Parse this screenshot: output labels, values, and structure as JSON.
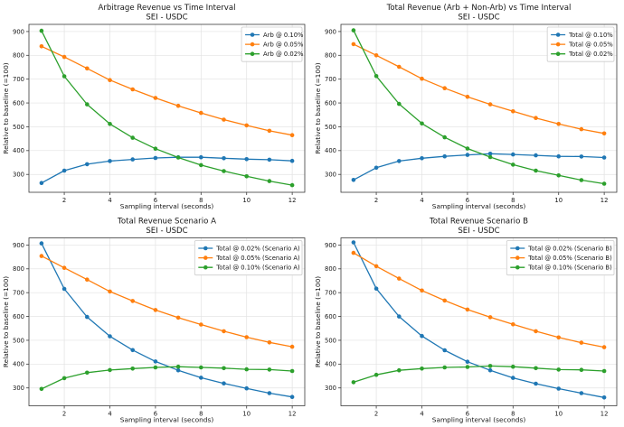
{
  "figure": {
    "background": "#ffffff",
    "text_color": "#161616",
    "grid_color": "#e2e2e2",
    "spine_color": "#3a3a3a",
    "legend_border": "#cccccc"
  },
  "palette": {
    "blue": "#1f77b4",
    "orange": "#ff7f0e",
    "green": "#2ca02c"
  },
  "chart_data": [
    {
      "id": "arbitrage-revenue",
      "type": "line",
      "title": "Arbitrage Revenue vs Time Interval",
      "subtitle": "SEI - USDC",
      "xlabel": "Sampling interval (seconds)",
      "ylabel": "Relative to baseline (=100)",
      "x": [
        1,
        2,
        3,
        4,
        5,
        6,
        7,
        8,
        9,
        10,
        11,
        12
      ],
      "xticks": [
        2,
        4,
        6,
        8,
        10,
        12
      ],
      "yticks": [
        300,
        400,
        500,
        600,
        700,
        800,
        900
      ],
      "xlim": [
        0.45,
        12.55
      ],
      "ylim": [
        225,
        930
      ],
      "grid": true,
      "legend_position": "upper right",
      "series": [
        {
          "name": "Arb @ 0.10%",
          "color": "#1f77b4",
          "values": [
            264,
            316,
            343,
            356,
            363,
            369,
            372,
            372,
            368,
            364,
            362,
            357
          ]
        },
        {
          "name": "Arb @ 0.05%",
          "color": "#ff7f0e",
          "values": [
            838,
            793,
            745,
            696,
            657,
            621,
            588,
            558,
            530,
            506,
            483,
            465
          ]
        },
        {
          "name": "Arb @ 0.02%",
          "color": "#2ca02c",
          "values": [
            903,
            712,
            594,
            512,
            454,
            408,
            371,
            339,
            314,
            292,
            272,
            255
          ]
        }
      ]
    },
    {
      "id": "total-revenue",
      "type": "line",
      "title": "Total Revenue (Arb + Non-Arb) vs Time Interval",
      "subtitle": "SEI - USDC",
      "xlabel": "Sampling interval (seconds)",
      "ylabel": "Relative to baseline (=100)",
      "x": [
        1,
        2,
        3,
        4,
        5,
        6,
        7,
        8,
        9,
        10,
        11,
        12
      ],
      "xticks": [
        2,
        4,
        6,
        8,
        10,
        12
      ],
      "yticks": [
        300,
        400,
        500,
        600,
        700,
        800,
        900
      ],
      "xlim": [
        0.45,
        12.55
      ],
      "ylim": [
        225,
        930
      ],
      "grid": true,
      "legend_position": "upper right",
      "series": [
        {
          "name": "Total @ 0.10%",
          "color": "#1f77b4",
          "values": [
            277,
            328,
            356,
            368,
            376,
            382,
            387,
            384,
            380,
            376,
            375,
            371
          ]
        },
        {
          "name": "Total @ 0.05%",
          "color": "#ff7f0e",
          "values": [
            847,
            800,
            752,
            702,
            662,
            626,
            594,
            565,
            537,
            512,
            490,
            472
          ]
        },
        {
          "name": "Total @ 0.02%",
          "color": "#2ca02c",
          "values": [
            905,
            713,
            596,
            514,
            456,
            409,
            373,
            341,
            316,
            296,
            276,
            261
          ]
        }
      ]
    },
    {
      "id": "scenario-a",
      "type": "line",
      "title": "Total Revenue Scenario A",
      "subtitle": "SEI - USDC",
      "xlabel": "Sampling interval (seconds)",
      "ylabel": "Relative to baseline (=100)",
      "x": [
        1,
        2,
        3,
        4,
        5,
        6,
        7,
        8,
        9,
        10,
        11,
        12
      ],
      "xticks": [
        2,
        4,
        6,
        8,
        10,
        12
      ],
      "yticks": [
        300,
        400,
        500,
        600,
        700,
        800,
        900
      ],
      "xlim": [
        0.45,
        12.55
      ],
      "ylim": [
        225,
        930
      ],
      "grid": true,
      "legend_position": "upper right",
      "series": [
        {
          "name": "Total @ 0.02% (Scenario A)",
          "color": "#1f77b4",
          "values": [
            907,
            716,
            598,
            517,
            459,
            411,
            374,
            343,
            319,
            298,
            278,
            262
          ]
        },
        {
          "name": "Total @ 0.05% (Scenario A)",
          "color": "#ff7f0e",
          "values": [
            854,
            804,
            755,
            705,
            665,
            627,
            595,
            566,
            538,
            513,
            491,
            473
          ]
        },
        {
          "name": "Total @ 0.10% (Scenario A)",
          "color": "#2ca02c",
          "values": [
            296,
            341,
            364,
            375,
            381,
            386,
            389,
            386,
            383,
            378,
            377,
            371
          ]
        }
      ]
    },
    {
      "id": "scenario-b",
      "type": "line",
      "title": "Total Revenue Scenario B",
      "subtitle": "SEI - USDC",
      "xlabel": "Sampling interval (seconds)",
      "ylabel": "Relative to baseline (=100)",
      "x": [
        1,
        2,
        3,
        4,
        5,
        6,
        7,
        8,
        9,
        10,
        11,
        12
      ],
      "xticks": [
        2,
        4,
        6,
        8,
        10,
        12
      ],
      "yticks": [
        300,
        400,
        500,
        600,
        700,
        800,
        900
      ],
      "xlim": [
        0.45,
        12.55
      ],
      "ylim": [
        225,
        930
      ],
      "grid": true,
      "legend_position": "upper right",
      "series": [
        {
          "name": "Total @ 0.02% (Scenario B)",
          "color": "#1f77b4",
          "values": [
            911,
            717,
            600,
            518,
            458,
            410,
            374,
            342,
            318,
            297,
            278,
            260
          ]
        },
        {
          "name": "Total @ 0.05% (Scenario B)",
          "color": "#ff7f0e",
          "values": [
            867,
            811,
            759,
            709,
            667,
            629,
            597,
            567,
            538,
            512,
            490,
            471
          ]
        },
        {
          "name": "Total @ 0.10% (Scenario B)",
          "color": "#2ca02c",
          "values": [
            324,
            355,
            374,
            381,
            386,
            388,
            392,
            389,
            383,
            377,
            376,
            371
          ]
        }
      ]
    }
  ]
}
